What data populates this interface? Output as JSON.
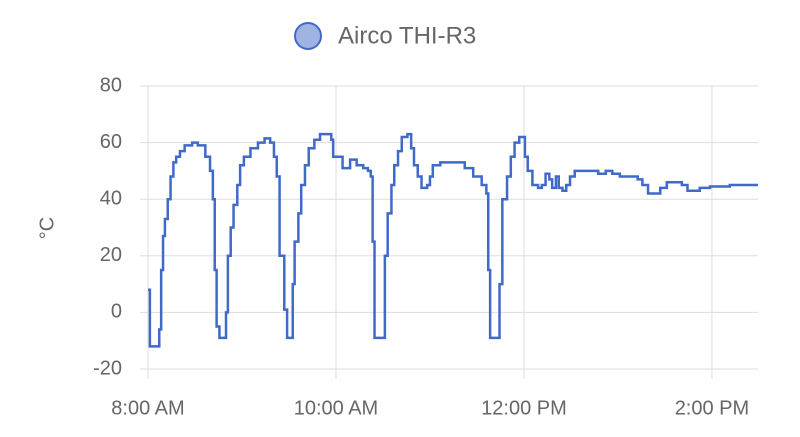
{
  "chart_data": {
    "type": "line",
    "y_label": "°C",
    "xlim": [
      8,
      14.49
    ],
    "ylim": [
      -20,
      80
    ],
    "xticks": [
      {
        "value": 8,
        "label": "8:00 AM"
      },
      {
        "value": 10,
        "label": "10:00 AM"
      },
      {
        "value": 12,
        "label": "12:00 PM"
      },
      {
        "value": 14,
        "label": "2:00 PM"
      }
    ],
    "yticks": [
      -20,
      0,
      20,
      40,
      60,
      80
    ],
    "grid": true,
    "step": true,
    "legend": "top",
    "x": [
      8.0,
      8.02,
      8.11,
      8.12,
      8.14,
      8.16,
      8.18,
      8.21,
      8.24,
      8.27,
      8.3,
      8.34,
      8.39,
      8.47,
      8.53,
      8.61,
      8.66,
      8.69,
      8.71,
      8.73,
      8.76,
      8.81,
      8.83,
      8.85,
      8.88,
      8.91,
      8.95,
      8.98,
      9.02,
      9.09,
      9.17,
      9.24,
      9.3,
      9.34,
      9.37,
      9.4,
      9.45,
      9.48,
      9.52,
      9.54,
      9.56,
      9.6,
      9.63,
      9.67,
      9.71,
      9.77,
      9.83,
      9.9,
      9.95,
      9.97,
      10.04,
      10.07,
      10.11,
      10.15,
      10.22,
      10.29,
      10.34,
      10.37,
      10.39,
      10.41,
      10.5,
      10.52,
      10.55,
      10.59,
      10.62,
      10.66,
      10.7,
      10.76,
      10.8,
      10.83,
      10.87,
      10.91,
      10.97,
      11.0,
      11.03,
      11.11,
      11.27,
      11.37,
      11.46,
      11.55,
      11.6,
      11.62,
      11.64,
      11.72,
      11.74,
      11.77,
      11.82,
      11.86,
      11.9,
      11.95,
      11.99,
      12.01,
      12.04,
      12.09,
      12.15,
      12.19,
      12.23,
      12.27,
      12.3,
      12.34,
      12.37,
      12.41,
      12.45,
      12.49,
      12.54,
      12.6,
      12.7,
      12.79,
      12.87,
      12.94,
      13.02,
      13.15,
      13.21,
      13.26,
      13.32,
      13.38,
      13.45,
      13.52,
      13.61,
      13.68,
      13.74,
      13.81,
      13.87,
      13.98,
      14.19,
      14.49
    ],
    "series": [
      {
        "name": "Airco THI-R3",
        "color": "#4169c8",
        "values": [
          8,
          -12,
          -12,
          -6,
          15,
          27,
          33,
          40,
          48,
          53,
          55,
          57,
          59,
          60,
          59,
          55,
          50,
          40,
          15,
          -5,
          -9,
          -9,
          0,
          20,
          30,
          38,
          45,
          52,
          55,
          58,
          60,
          61.5,
          60,
          55,
          48,
          20,
          1,
          -9,
          -9,
          10,
          25,
          35,
          45,
          52,
          58,
          61,
          63,
          63,
          61,
          55,
          55,
          51,
          51,
          54,
          52,
          51,
          50,
          48,
          25,
          -9,
          -9,
          20,
          35,
          45,
          52,
          57,
          62,
          63,
          58,
          52,
          48,
          44,
          45,
          48,
          52,
          53,
          53,
          51,
          48,
          45,
          42,
          15,
          -9,
          -9,
          10,
          40,
          48,
          55,
          60,
          62,
          62,
          55,
          50,
          45,
          44,
          45,
          49,
          47,
          44,
          48,
          44,
          43,
          45,
          48,
          50,
          50,
          50,
          49,
          50,
          49,
          48,
          48,
          47,
          45,
          42,
          42,
          44,
          46,
          46,
          45,
          43,
          43,
          44,
          44.5,
          45,
          45
        ]
      }
    ]
  }
}
